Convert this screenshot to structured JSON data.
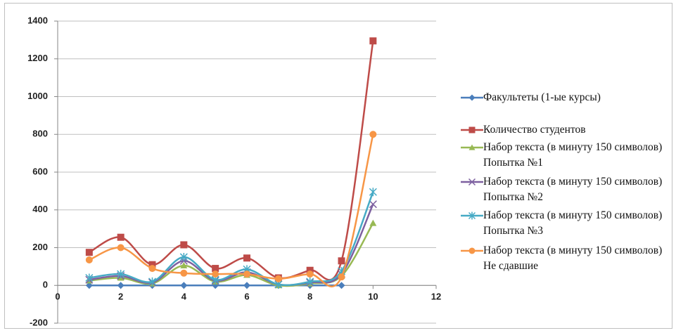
{
  "chart_data": {
    "type": "line",
    "x": [
      1,
      2,
      3,
      4,
      5,
      6,
      7,
      8,
      9,
      10
    ],
    "series": [
      {
        "name": "Факультеты (1-ые курсы)",
        "color": "#4a7ebb",
        "marker": "diamond",
        "values": [
          0,
          0,
          0,
          0,
          0,
          0,
          0,
          0,
          0,
          null
        ]
      },
      {
        "name": "Количество студентов",
        "color": "#be4b48",
        "marker": "square",
        "values": [
          175,
          255,
          110,
          215,
          90,
          145,
          40,
          80,
          130,
          1295
        ]
      },
      {
        "name": "Набор текста (в минуту 150 символов) Попытка №1",
        "color": "#98b954",
        "marker": "triangle",
        "values": [
          25,
          40,
          10,
          105,
          20,
          55,
          0,
          10,
          50,
          330
        ]
      },
      {
        "name": "Набор текста (в минуту 150 символов) Попытка №2",
        "color": "#7d60a0",
        "marker": "x",
        "values": [
          30,
          50,
          15,
          130,
          25,
          70,
          5,
          15,
          60,
          430
        ]
      },
      {
        "name": "Набор текста (в минуту 150 символов) Попытка №3",
        "color": "#46aac5",
        "marker": "star",
        "values": [
          40,
          60,
          20,
          150,
          30,
          85,
          5,
          20,
          75,
          495
        ]
      },
      {
        "name": "Набор текста (в минуту 150 символов) Не сдавшие",
        "color": "#f79646",
        "marker": "circle",
        "values": [
          135,
          200,
          90,
          65,
          60,
          60,
          35,
          60,
          45,
          800
        ]
      }
    ],
    "xlim": [
      0,
      12
    ],
    "xticks": [
      0,
      2,
      4,
      6,
      8,
      10,
      12
    ],
    "ylim": [
      -200,
      1400
    ],
    "yticks": [
      -200,
      0,
      200,
      400,
      600,
      800,
      1000,
      1200,
      1400
    ],
    "grid": true,
    "smooth": true,
    "legend": "right"
  }
}
